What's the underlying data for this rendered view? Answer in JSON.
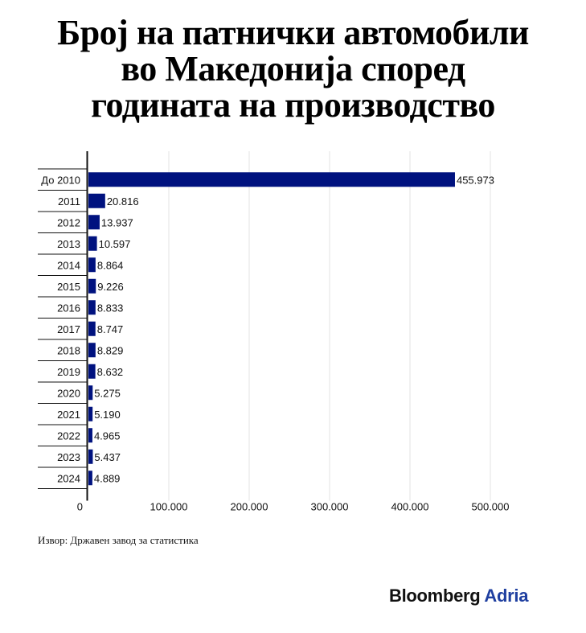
{
  "title_lines": [
    "Број на патнички автомобили",
    "во Македонија според",
    "годината на производство"
  ],
  "source": "Извор: Државен завод за статистика",
  "logo": {
    "part1": "Bloomberg",
    "part2": "Adria"
  },
  "colors": {
    "bar": "#00127f",
    "grid": "#e3e3e3",
    "logo_accent": "#1f3fa0"
  },
  "chart_data": {
    "type": "bar",
    "orientation": "horizontal",
    "categories": [
      "До 2010",
      "2011",
      "2012",
      "2013",
      "2014",
      "2015",
      "2016",
      "2017",
      "2018",
      "2019",
      "2020",
      "2021",
      "2022",
      "2023",
      "2024"
    ],
    "values": [
      455973,
      20816,
      13937,
      10597,
      8864,
      9226,
      8833,
      8747,
      8829,
      8632,
      5275,
      5190,
      4965,
      5437,
      4889
    ],
    "value_labels": [
      "455.973",
      "20.816",
      "13.937",
      "10.597",
      "8.864",
      "9.226",
      "8.833",
      "8.747",
      "8.829",
      "8.632",
      "5.275",
      "5.190",
      "4.965",
      "5.437",
      "4.889"
    ],
    "xlim": [
      0,
      500000
    ],
    "x_ticks": [
      0,
      100000,
      200000,
      300000,
      400000,
      500000
    ],
    "x_tick_labels": [
      "0",
      "100.000",
      "200.000",
      "300.000",
      "400.000",
      "500.000"
    ],
    "grid": true,
    "legend": "none"
  }
}
